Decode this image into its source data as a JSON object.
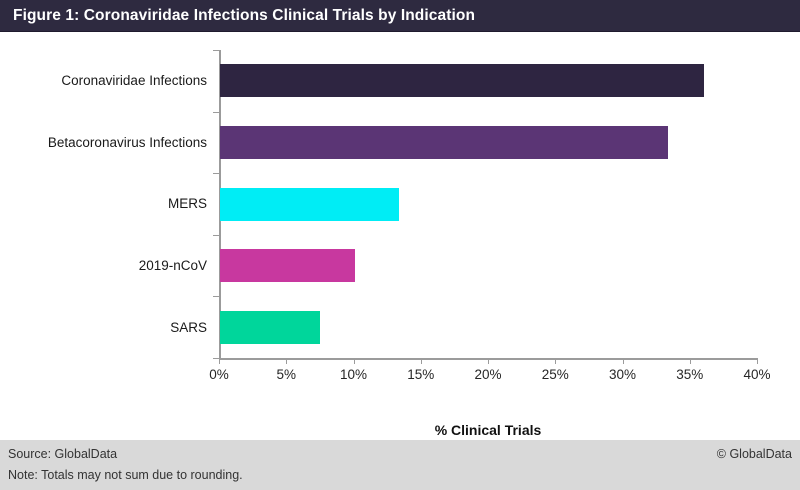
{
  "window": {
    "title_bar": "Figure 1: Coronaviridae Infections Clinical Trials by Indication"
  },
  "chart_data": {
    "type": "bar",
    "orientation": "horizontal",
    "title": "Figure 1: Coronaviridae Infections Clinical Trials by Indication",
    "categories": [
      "Coronaviridae Infections",
      "Betacoronavirus Infections",
      "MERS",
      "2019-nCoV",
      "SARS"
    ],
    "values": [
      36,
      33.3,
      13.3,
      10,
      7.4
    ],
    "unit": "%",
    "bar_colors": [
      "#2e2541",
      "#5b3575",
      "#00edf5",
      "#c8389f",
      "#00d69b"
    ],
    "xlabel": "% Clinical Trials",
    "xlim": [
      0,
      40
    ],
    "xticks": [
      0,
      5,
      10,
      15,
      20,
      25,
      30,
      35,
      40
    ],
    "xtick_labels": [
      "0%",
      "5%",
      "10%",
      "15%",
      "20%",
      "25%",
      "30%",
      "35%",
      "40%"
    ],
    "grid": false,
    "legend": false
  },
  "footer": {
    "source": "Source: GlobalData",
    "copyright": "© GlobalData",
    "note": "Note: Totals may not sum due to rounding."
  },
  "colors": {
    "title_bar_bg": "#2e2a40",
    "title_text": "#ffffff",
    "footer_bg": "#d9d9d9",
    "axis": "#9b9b9b"
  }
}
